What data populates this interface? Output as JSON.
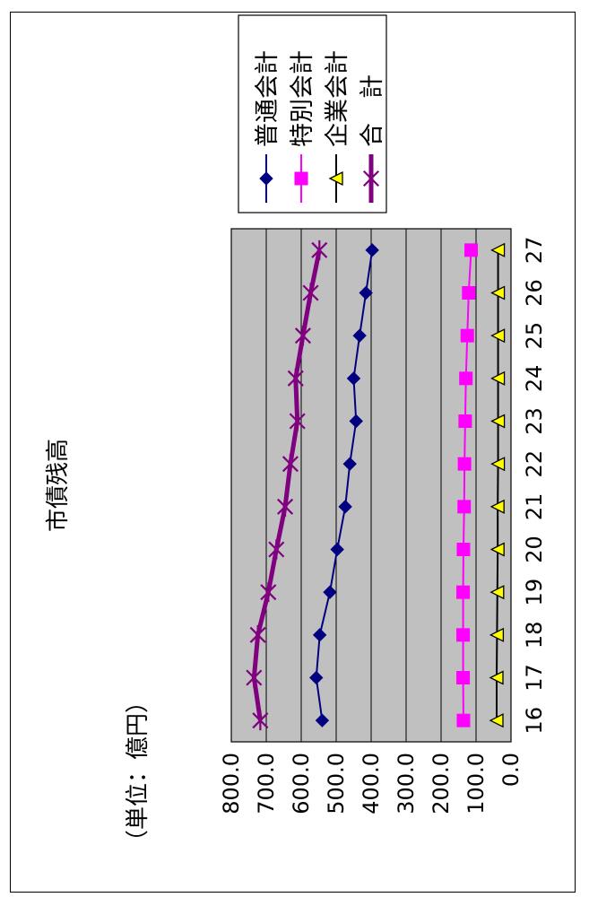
{
  "chart_data": {
    "type": "line",
    "title": "市債残高",
    "ylabel": "（単位：億円）",
    "xlabel": "",
    "categories": [
      "16",
      "17",
      "18",
      "19",
      "20",
      "21",
      "22",
      "23",
      "24",
      "25",
      "26",
      "27"
    ],
    "ylim": [
      0,
      800
    ],
    "yticks": [
      "0.0",
      "100.0",
      "200.0",
      "300.0",
      "400.0",
      "500.0",
      "600.0",
      "700.0",
      "800.0"
    ],
    "grid": true,
    "legend_position": "top-right",
    "series": [
      {
        "name": "普通会計",
        "color": "#000080",
        "marker": "diamond",
        "values": [
          540,
          557,
          547,
          518,
          497,
          474,
          461,
          443,
          450,
          433,
          415,
          397
        ]
      },
      {
        "name": "特別会計",
        "color": "#ff00ff",
        "marker": "square",
        "values": [
          136,
          137,
          137,
          137,
          136,
          134,
          133,
          131,
          129,
          125,
          121,
          114
        ]
      },
      {
        "name": "企業会計",
        "color": "#000000",
        "marker": "triangle",
        "values": [
          41,
          41,
          40,
          39,
          38,
          38,
          37,
          37,
          37,
          37,
          37,
          37
        ]
      },
      {
        "name": "合　計",
        "color": "#800080",
        "marker": "asterisk",
        "values": [
          717,
          735,
          724,
          694,
          671,
          646,
          631,
          611,
          616,
          595,
          573,
          548
        ]
      }
    ]
  }
}
